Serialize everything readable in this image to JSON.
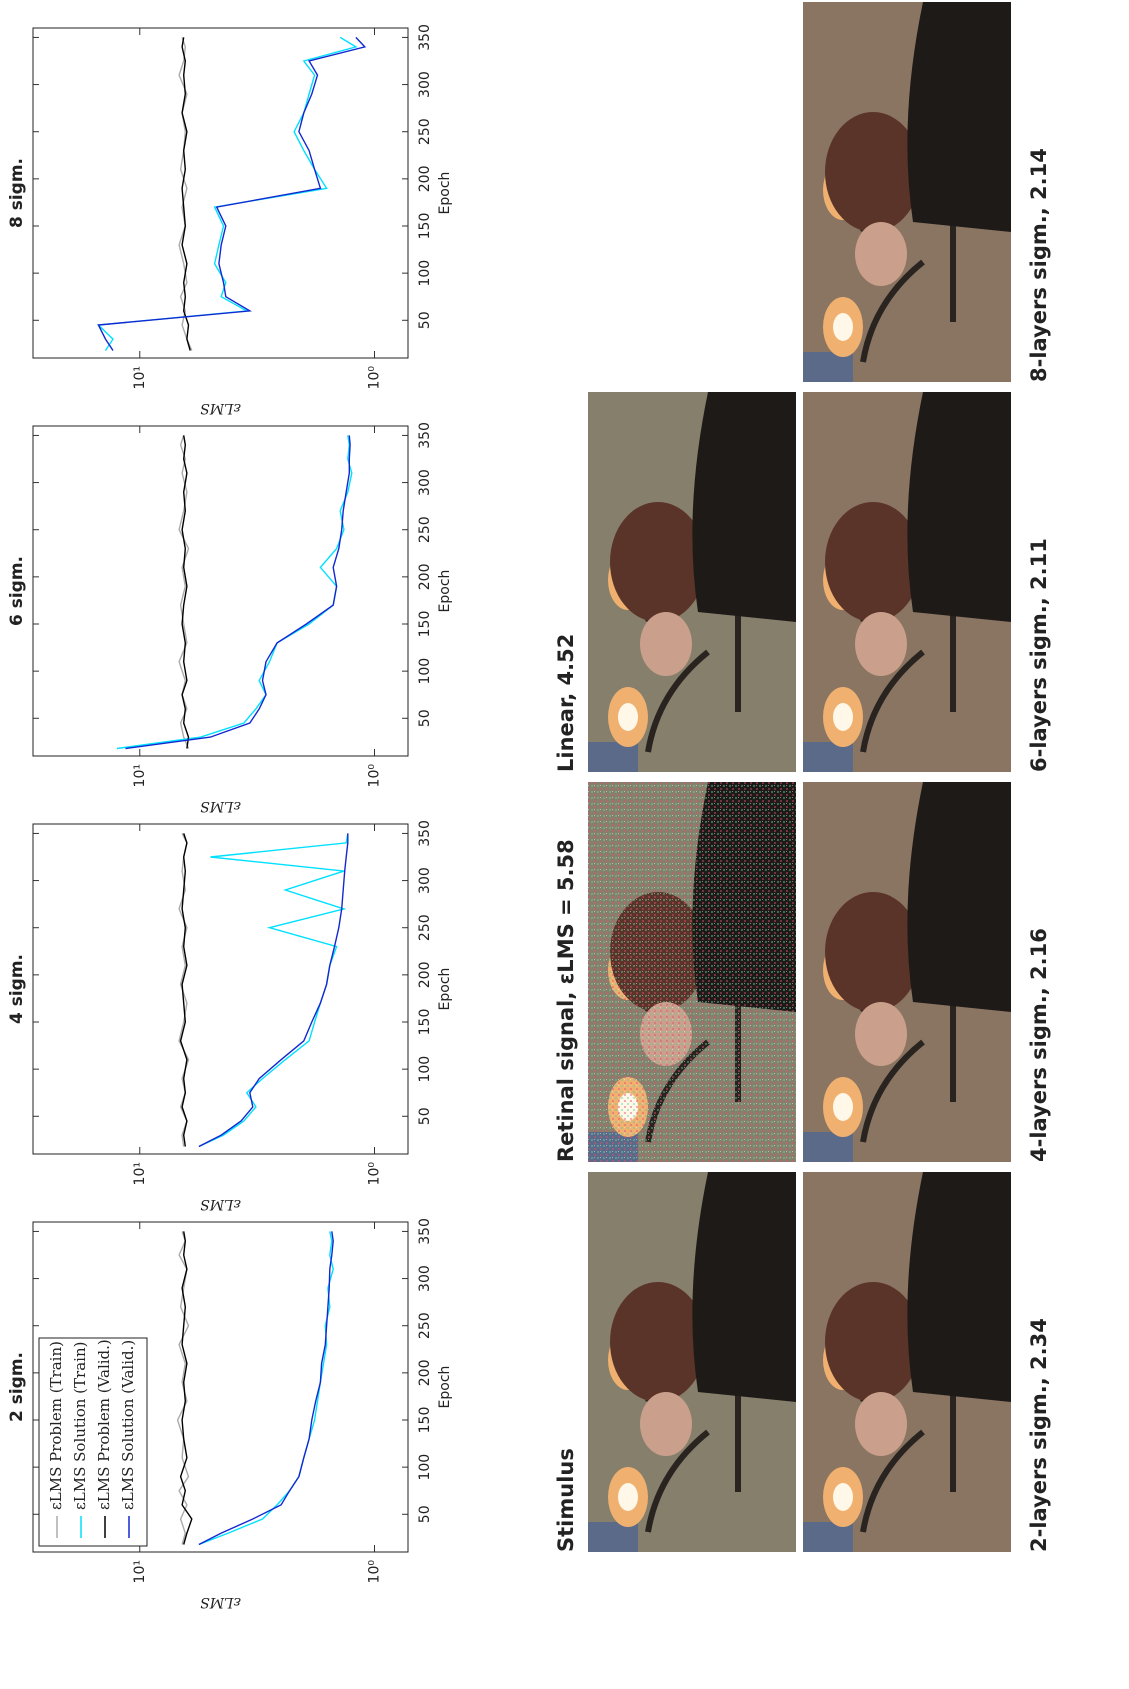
{
  "chart_data": [
    {
      "type": "line",
      "title": "2 sigm.",
      "x_label": "Epoch",
      "y_label": "εLMS",
      "x": [
        18,
        30,
        45,
        60,
        75,
        90,
        110,
        130,
        150,
        170,
        190,
        210,
        230,
        250,
        270,
        290,
        310,
        325,
        340,
        350
      ],
      "xlim": [
        10,
        360
      ],
      "xticks": [
        50,
        100,
        150,
        200,
        250,
        300,
        350
      ],
      "ylim": [
        0.72,
        28.5
      ],
      "yticks": [
        {
          "value": 1,
          "label": "10⁰"
        },
        {
          "value": 10,
          "label": "10¹"
        }
      ],
      "log_y": true,
      "legend": "upper left",
      "series": [
        {
          "name": "εLMS Problem (Train)",
          "color": "#aaaaaa",
          "values": [
            6.6,
            6.4,
            6.7,
            6.3,
            6.8,
            6.2,
            6.6,
            6.5,
            6.9,
            6.3,
            6.6,
            6.4,
            6.8,
            6.2,
            6.7,
            6.5,
            6.3,
            6.8,
            6.4,
            6.6
          ]
        },
        {
          "name": "εLMS Solution (Train)",
          "color": "#00e0ff",
          "values": [
            5.6,
            4.2,
            3.0,
            2.6,
            2.3,
            2.1,
            2.0,
            1.9,
            1.8,
            1.75,
            1.7,
            1.65,
            1.6,
            1.62,
            1.55,
            1.58,
            1.5,
            1.55,
            1.52,
            1.55
          ]
        },
        {
          "name": "εLMS Problem (Valid.)",
          "color": "#000000",
          "values": [
            6.5,
            6.3,
            6.0,
            6.6,
            6.4,
            6.7,
            6.3,
            6.5,
            6.6,
            6.4,
            6.5,
            6.3,
            6.6,
            6.5,
            6.4,
            6.6,
            6.3,
            6.5,
            6.4,
            6.5
          ]
        },
        {
          "name": "εLMS Solution (Valid.)",
          "color": "#1428d0",
          "values": [
            5.6,
            4.5,
            3.3,
            2.5,
            2.3,
            2.1,
            2.0,
            1.9,
            1.85,
            1.78,
            1.7,
            1.68,
            1.62,
            1.6,
            1.58,
            1.56,
            1.55,
            1.52,
            1.5,
            1.52
          ]
        }
      ]
    },
    {
      "type": "line",
      "title": "4 sigm.",
      "x_label": "Epoch",
      "y_label": "εLMS",
      "x": [
        18,
        30,
        45,
        60,
        75,
        90,
        110,
        130,
        150,
        170,
        190,
        210,
        230,
        250,
        270,
        290,
        310,
        325,
        340,
        350
      ],
      "xlim": [
        10,
        360
      ],
      "xticks": [
        50,
        100,
        150,
        200,
        250,
        300,
        350
      ],
      "ylim": [
        0.72,
        28.5
      ],
      "yticks": [
        {
          "value": 1,
          "label": "10⁰"
        },
        {
          "value": 10,
          "label": "10¹"
        }
      ],
      "log_y": true,
      "series": [
        {
          "color": "#aaaaaa",
          "values": [
            6.5,
            6.6,
            6.3,
            6.7,
            6.4,
            6.6,
            6.2,
            6.8,
            6.5,
            6.3,
            6.7,
            6.4,
            6.6,
            6.3,
            6.8,
            6.4,
            6.6,
            6.5,
            6.3,
            6.6
          ]
        },
        {
          "color": "#00e0ff",
          "values": [
            5.6,
            4.4,
            3.6,
            3.2,
            3.5,
            3.0,
            2.4,
            1.9,
            1.8,
            1.7,
            1.6,
            1.55,
            1.45,
            2.8,
            1.35,
            2.4,
            1.35,
            5.0,
            1.32,
            1.3
          ]
        },
        {
          "color": "#000000",
          "values": [
            6.4,
            6.5,
            6.3,
            6.6,
            6.4,
            6.5,
            6.3,
            6.7,
            6.4,
            6.5,
            6.6,
            6.3,
            6.5,
            6.4,
            6.6,
            6.5,
            6.4,
            6.5,
            6.3,
            6.5
          ]
        },
        {
          "color": "#1428d0",
          "values": [
            5.6,
            4.5,
            3.7,
            3.3,
            3.4,
            3.1,
            2.5,
            2.0,
            1.85,
            1.7,
            1.6,
            1.55,
            1.48,
            1.42,
            1.38,
            1.36,
            1.34,
            1.32,
            1.3,
            1.3
          ]
        }
      ]
    },
    {
      "type": "line",
      "title": "6 sigm.",
      "x_label": "Epoch",
      "y_label": "εLMS",
      "x": [
        18,
        30,
        45,
        60,
        75,
        90,
        110,
        130,
        150,
        170,
        190,
        210,
        230,
        250,
        270,
        290,
        310,
        325,
        340,
        350
      ],
      "xlim": [
        10,
        360
      ],
      "xticks": [
        50,
        100,
        150,
        200,
        250,
        300,
        350
      ],
      "ylim": [
        0.72,
        28.5
      ],
      "yticks": [
        {
          "value": 1,
          "label": "10⁰"
        },
        {
          "value": 10,
          "label": "10¹"
        }
      ],
      "log_y": true,
      "series": [
        {
          "color": "#aaaaaa",
          "values": [
            6.2,
            6.5,
            6.7,
            6.3,
            6.6,
            6.4,
            6.8,
            6.3,
            6.5,
            6.7,
            6.4,
            6.6,
            6.2,
            6.8,
            6.5,
            6.3,
            6.6,
            6.4,
            6.7,
            6.5
          ]
        },
        {
          "color": "#00e0ff",
          "values": [
            12.5,
            5.5,
            3.6,
            3.2,
            2.9,
            3.1,
            2.8,
            2.6,
            1.9,
            1.5,
            1.45,
            1.7,
            1.45,
            1.35,
            1.4,
            1.3,
            1.25,
            1.3,
            1.28,
            1.3
          ]
        },
        {
          "color": "#000000",
          "values": [
            6.3,
            6.2,
            6.5,
            6.4,
            6.6,
            6.3,
            6.5,
            6.4,
            6.6,
            6.5,
            6.3,
            6.5,
            6.4,
            6.6,
            6.4,
            6.5,
            6.3,
            6.5,
            6.4,
            6.5
          ]
        },
        {
          "color": "#1428d0",
          "values": [
            11.5,
            5.0,
            3.4,
            3.1,
            2.9,
            3.0,
            2.9,
            2.6,
            1.95,
            1.5,
            1.45,
            1.5,
            1.42,
            1.38,
            1.36,
            1.32,
            1.28,
            1.28,
            1.27,
            1.28
          ]
        }
      ]
    },
    {
      "type": "line",
      "title": "8 sigm.",
      "x_label": "Epoch",
      "y_label": "εLMS",
      "x": [
        18,
        30,
        45,
        60,
        75,
        90,
        110,
        130,
        150,
        170,
        190,
        210,
        230,
        250,
        270,
        290,
        310,
        325,
        340,
        350
      ],
      "xlim": [
        10,
        360
      ],
      "xticks": [
        50,
        100,
        150,
        200,
        250,
        300,
        350
      ],
      "ylim": [
        0.72,
        28.5
      ],
      "yticks": [
        {
          "value": 1,
          "label": "10⁰"
        },
        {
          "value": 10,
          "label": "10¹"
        }
      ],
      "log_y": true,
      "series": [
        {
          "color": "#aaaaaa",
          "values": [
            6.0,
            6.3,
            6.6,
            6.4,
            6.7,
            6.3,
            6.5,
            6.8,
            6.4,
            6.6,
            6.3,
            6.7,
            6.5,
            6.4,
            6.6,
            6.3,
            6.8,
            6.5,
            6.4,
            6.6
          ]
        },
        {
          "color": "#00e0ff",
          "values": [
            14,
            13,
            15,
            3.5,
            4.5,
            4.3,
            4.8,
            4.6,
            4.4,
            4.8,
            1.6,
            1.8,
            2.0,
            2.2,
            2.0,
            1.9,
            1.8,
            2.0,
            1.2,
            1.4
          ]
        },
        {
          "color": "#000000",
          "values": [
            6.1,
            6.3,
            6.2,
            6.5,
            6.4,
            6.5,
            6.3,
            6.6,
            6.4,
            6.5,
            6.6,
            6.4,
            6.5,
            6.3,
            6.6,
            6.4,
            6.5,
            6.4,
            6.6,
            6.5
          ]
        },
        {
          "color": "#1428d0",
          "values": [
            13,
            14,
            15,
            3.4,
            4.3,
            4.4,
            4.6,
            4.5,
            4.3,
            4.7,
            1.7,
            1.8,
            1.9,
            2.1,
            2.0,
            1.85,
            1.75,
            1.9,
            1.1,
            1.2
          ]
        }
      ]
    }
  ],
  "images": [
    {
      "caption": "Stimulus"
    },
    {
      "caption": "Retinal signal,  εLMS  = 5.58"
    },
    {
      "caption": "Linear,   4.52"
    },
    {
      "caption": "2-layers sigm.,  2.34"
    },
    {
      "caption": "4-layers sigm., 2.16"
    },
    {
      "caption": "6-layers sigm., 2.11"
    },
    {
      "caption": "8-layers sigm., 2.14"
    }
  ]
}
